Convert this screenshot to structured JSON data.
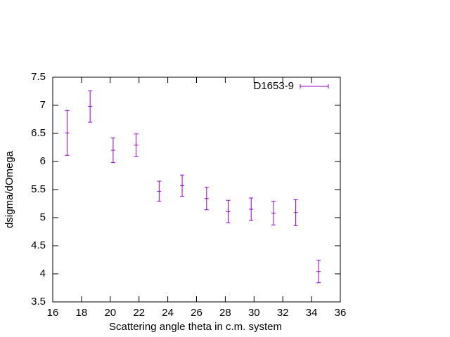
{
  "chart_data": {
    "type": "errorbar",
    "x_label": "Scattering angle theta in c.m. system",
    "y_label": "dsigma/dOmega",
    "series": [
      {
        "name": "D1653-9",
        "color": "#9400d3",
        "x": [
          17.0,
          18.6,
          20.2,
          21.8,
          23.4,
          25.0,
          26.7,
          28.2,
          29.8,
          31.35,
          32.9,
          34.5
        ],
        "values": [
          6.51,
          6.98,
          6.2,
          6.29,
          5.47,
          5.57,
          5.34,
          5.11,
          5.15,
          5.08,
          5.09,
          4.04
        ],
        "errors": [
          0.4,
          0.28,
          0.22,
          0.2,
          0.18,
          0.19,
          0.2,
          0.2,
          0.2,
          0.21,
          0.23,
          0.2
        ]
      }
    ],
    "xlim": [
      16,
      36
    ],
    "xticks": [
      16,
      18,
      20,
      22,
      24,
      26,
      28,
      30,
      32,
      34,
      36
    ],
    "ylim": [
      3.5,
      7.5
    ],
    "yticks": [
      3.5,
      4,
      4.5,
      5,
      5.5,
      6,
      6.5,
      7,
      7.5
    ],
    "legend_position": "top right"
  }
}
